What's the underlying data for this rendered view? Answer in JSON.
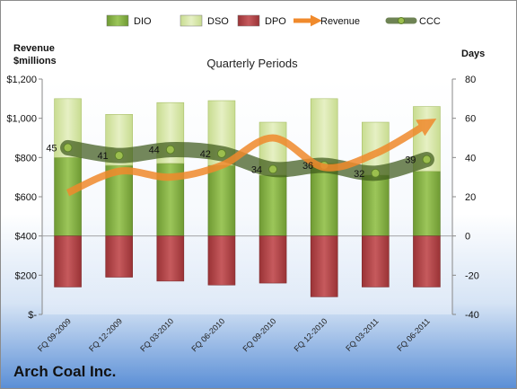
{
  "chart_data": {
    "type": "bar",
    "title": "Quarterly Periods",
    "company": "Arch Coal Inc.",
    "left_axis": {
      "label_line1": "Revenue",
      "label_line2": "$millions",
      "range": [
        0,
        1200
      ],
      "ticks": [
        "$-",
        "$200",
        "$400",
        "$600",
        "$800",
        "$1,000",
        "$1,200"
      ],
      "tick_values": [
        0,
        200,
        400,
        600,
        800,
        1000,
        1200
      ]
    },
    "right_axis": {
      "label": "Days",
      "range": [
        -40,
        80
      ],
      "ticks": [
        "-40",
        "-20",
        "0",
        "20",
        "40",
        "60",
        "80"
      ],
      "tick_values": [
        -40,
        -20,
        0,
        20,
        40,
        60,
        80
      ]
    },
    "categories": [
      "FQ 09-2009",
      "FQ 12-2009",
      "FQ 03-2010",
      "FQ 06-2010",
      "FQ 09-2010",
      "FQ 12-2010",
      "FQ 03-2011",
      "FQ 06-2011"
    ],
    "legend": {
      "position": "top",
      "entries": [
        "DIO",
        "DSO",
        "DPO",
        "Revenue",
        "CCC"
      ]
    },
    "series": [
      {
        "name": "DIO",
        "values": [
          40,
          36,
          37,
          36,
          31,
          37,
          31,
          33
        ],
        "color": "#8db848"
      },
      {
        "name": "DSO",
        "values": [
          30,
          26,
          31,
          33,
          27,
          33,
          27,
          33
        ],
        "color": "#d7e8a8"
      },
      {
        "name": "DPO",
        "values": [
          -26,
          -21,
          -23,
          -25,
          -24,
          -31,
          -26,
          -26
        ],
        "color": "#b9474a"
      },
      {
        "name": "Revenue",
        "values": [
          620,
          730,
          700,
          760,
          900,
          750,
          820,
          970
        ],
        "color": "#f08a2c"
      },
      {
        "name": "CCC",
        "values": [
          45,
          41,
          44,
          42,
          34,
          36,
          32,
          39
        ],
        "color": "#4f6228",
        "labels": [
          "45",
          "41",
          "44",
          "42",
          "34",
          "36",
          "32",
          "39"
        ]
      }
    ],
    "grid": false
  }
}
